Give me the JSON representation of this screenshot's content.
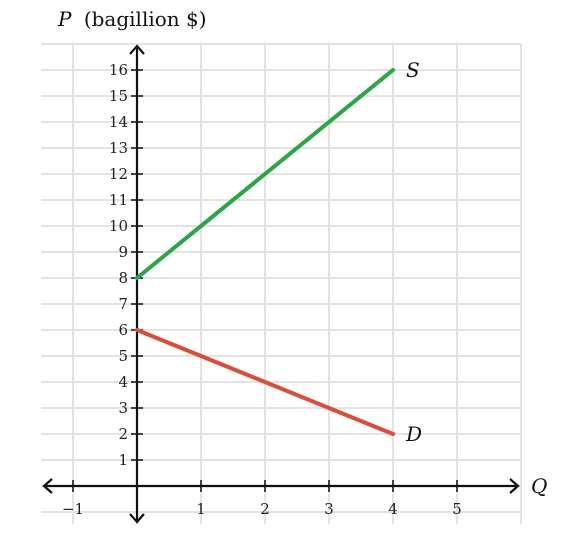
{
  "chart_data": {
    "type": "line",
    "ylabel_var": "P",
    "ylabel_unit": "(bagillion $)",
    "xlabel": "Q",
    "xlim": [
      -1.5,
      6
    ],
    "ylim": [
      -1.5,
      17.5
    ],
    "x_ticks": [
      -1,
      1,
      2,
      3,
      4,
      5
    ],
    "x_tick_labels": [
      "−1",
      "1",
      "2",
      "3",
      "4",
      "5"
    ],
    "y_ticks": [
      1,
      2,
      3,
      4,
      5,
      6,
      7,
      8,
      9,
      10,
      11,
      12,
      13,
      14,
      15,
      16
    ],
    "y_tick_labels": [
      "1",
      "2",
      "3",
      "4",
      "5",
      "6",
      "7",
      "8",
      "9",
      "10",
      "11",
      "12",
      "13",
      "14",
      "15",
      "16"
    ],
    "grid": true,
    "series": [
      {
        "name": "S",
        "color": "#28a745",
        "points": [
          [
            0,
            8
          ],
          [
            4,
            16
          ]
        ]
      },
      {
        "name": "D",
        "color": "#e04b35",
        "points": [
          [
            0,
            6
          ],
          [
            4,
            2
          ]
        ]
      }
    ]
  }
}
